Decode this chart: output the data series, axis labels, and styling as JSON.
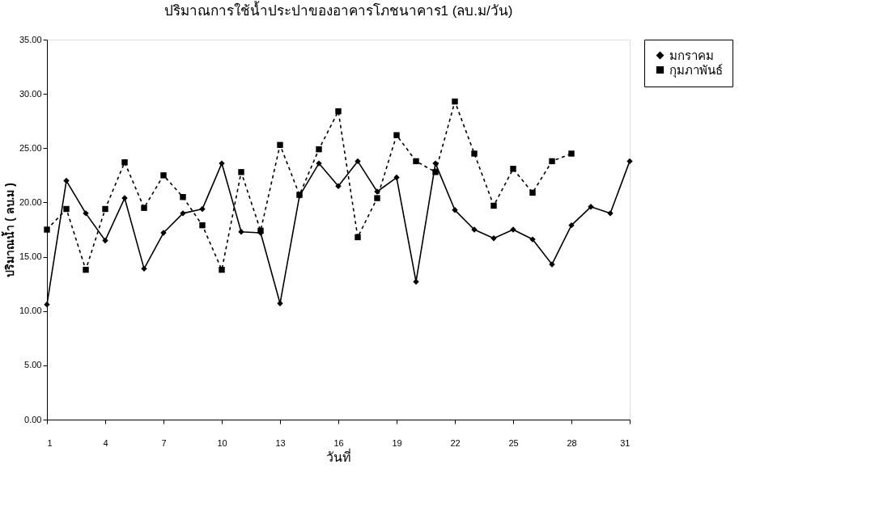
{
  "chart_data": {
    "type": "line",
    "title": "ปริมาณการใช้น้ำประปาของอาคารโภชนาคาร1 (ลบ.ม/วัน)",
    "xlabel": "วันที่",
    "ylabel": "ปริมาณน้ำ ( ลบ.ม )",
    "x": [
      1,
      2,
      3,
      4,
      5,
      6,
      7,
      8,
      9,
      10,
      11,
      12,
      13,
      14,
      15,
      16,
      17,
      18,
      19,
      20,
      21,
      22,
      23,
      24,
      25,
      26,
      27,
      28,
      29,
      30,
      31
    ],
    "series": [
      {
        "name": "มกราคม",
        "color": "#000000",
        "marker": "diamond",
        "line_style": "solid",
        "values": [
          10.6,
          22.0,
          19.0,
          16.5,
          20.4,
          13.9,
          17.2,
          19.0,
          19.4,
          23.6,
          17.3,
          17.2,
          10.7,
          20.6,
          23.6,
          21.5,
          23.8,
          21.0,
          22.3,
          12.7,
          23.6,
          19.3,
          17.5,
          16.7,
          17.5,
          16.6,
          14.3,
          17.9,
          19.6,
          19.0,
          23.8
        ]
      },
      {
        "name": "กุมภาพันธ์",
        "color": "#000000",
        "marker": "square",
        "line_style": "dashed",
        "values": [
          17.5,
          19.4,
          13.8,
          19.4,
          23.7,
          19.5,
          22.5,
          20.5,
          17.9,
          13.8,
          22.8,
          17.4,
          25.3,
          20.7,
          24.9,
          28.4,
          16.8,
          20.4,
          26.2,
          23.8,
          22.8,
          29.3,
          24.5,
          19.7,
          23.1,
          20.9,
          23.8,
          24.5,
          null,
          null,
          null
        ]
      }
    ],
    "xlim": [
      1,
      31
    ],
    "xticks": [
      1,
      4,
      7,
      10,
      13,
      16,
      19,
      22,
      25,
      28,
      31
    ],
    "ylim": [
      0,
      35
    ],
    "yticks": [
      {
        "value": 0,
        "label": "0.00"
      },
      {
        "value": 5,
        "label": "5.00"
      },
      {
        "value": 10,
        "label": "10.00"
      },
      {
        "value": 15,
        "label": "15.00"
      },
      {
        "value": 20,
        "label": "20.00"
      },
      {
        "value": 25,
        "label": "25.00"
      },
      {
        "value": 30,
        "label": "30.00"
      },
      {
        "value": 35,
        "label": "35.00"
      }
    ],
    "grid": false,
    "legend": "right"
  }
}
